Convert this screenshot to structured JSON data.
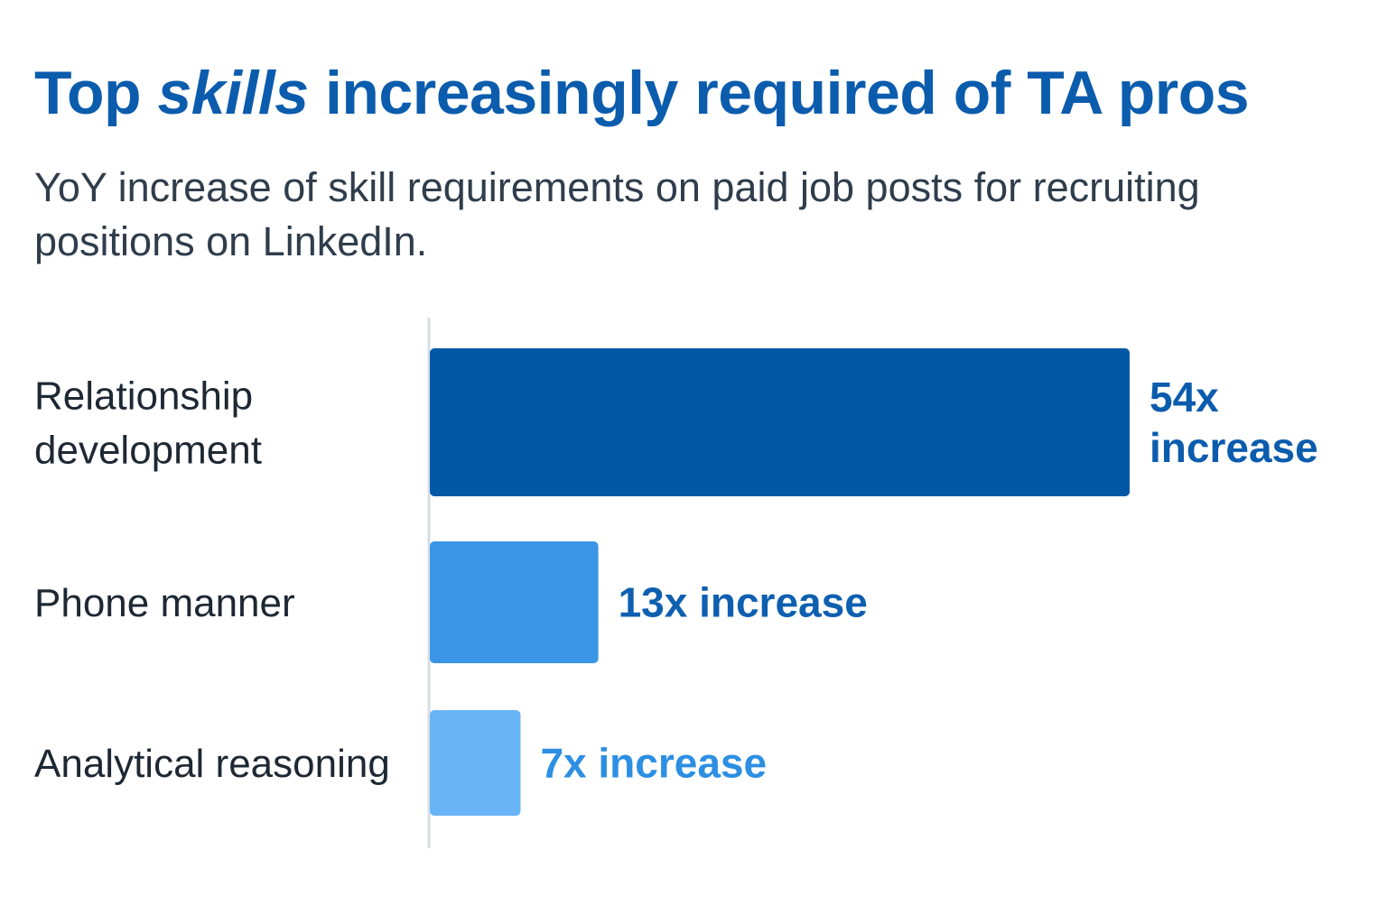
{
  "header": {
    "title_before": "Top ",
    "title_emphasis": "skills",
    "title_after": " increasingly required of TA pros",
    "subtitle": "YoY increase of skill requirements on paid job posts for recruiting positions on LinkedIn."
  },
  "chart_data": {
    "type": "bar",
    "orientation": "horizontal",
    "title": "Top skills increasingly required of TA pros",
    "subtitle": "YoY increase of skill requirements on paid job posts for recruiting positions on LinkedIn.",
    "categories": [
      "Relationship development",
      "Phone manner",
      "Analytical reasoning"
    ],
    "category_label_lines": [
      [
        "Relationship",
        "development"
      ],
      [
        "Phone manner"
      ],
      [
        "Analytical reasoning"
      ]
    ],
    "values": [
      54,
      13,
      7
    ],
    "value_label_lines": [
      [
        "54x",
        "increase"
      ],
      [
        "13x increase"
      ],
      [
        "7x increase"
      ]
    ],
    "xlabel": "",
    "ylabel": "",
    "xlim": [
      0,
      54
    ],
    "grid": false,
    "legend": "none",
    "colors": {
      "bars": [
        "#0358a6",
        "#3b95e6",
        "#68b4f5"
      ],
      "value_labels": [
        "#0b5cad",
        "#0e5fb0",
        "#2c8fe3"
      ],
      "category_text": "#1e2834",
      "axis_line": "#d6dde6"
    }
  }
}
